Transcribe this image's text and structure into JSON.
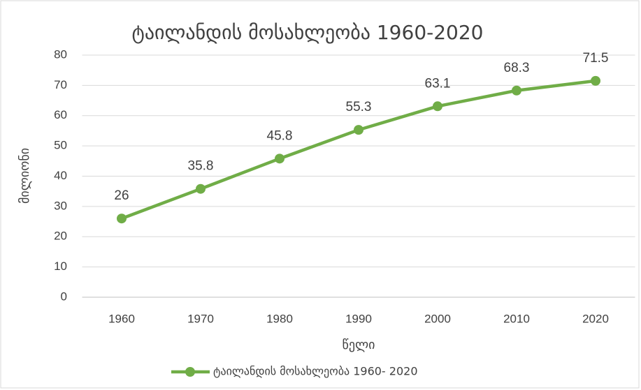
{
  "chart_data": {
    "type": "line",
    "title": "ტაილანდის მოსახლეობა 1960-2020",
    "x_label": "წელი",
    "y_label": "მილიონი",
    "categories": [
      "1960",
      "1970",
      "1980",
      "1990",
      "2000",
      "2010",
      "2020"
    ],
    "series": [
      {
        "name": "ტაილანდის მოსახლეობა 1960- 2020",
        "color": "#70ad47",
        "values": [
          26,
          35.8,
          45.8,
          55.3,
          63.1,
          68.3,
          71.5
        ]
      }
    ],
    "ylim": [
      0,
      80
    ],
    "yticks": [
      0,
      10,
      20,
      30,
      40,
      50,
      60,
      70,
      80
    ],
    "grid": true,
    "data_labels": true,
    "legend": "bottom"
  }
}
